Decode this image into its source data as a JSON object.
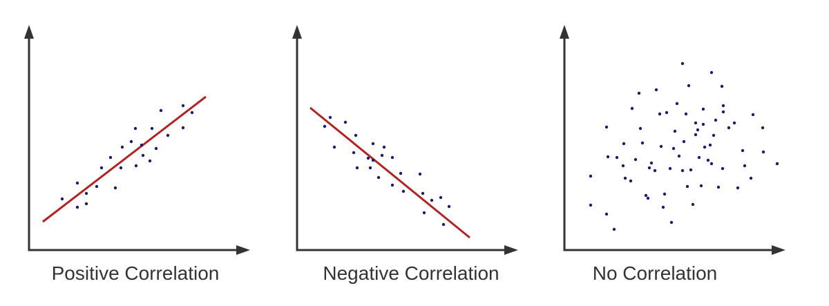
{
  "panels": [
    {
      "label": "Positive Correlation"
    },
    {
      "label": "Negative Correlation"
    },
    {
      "label": "No Correlation"
    }
  ]
}
